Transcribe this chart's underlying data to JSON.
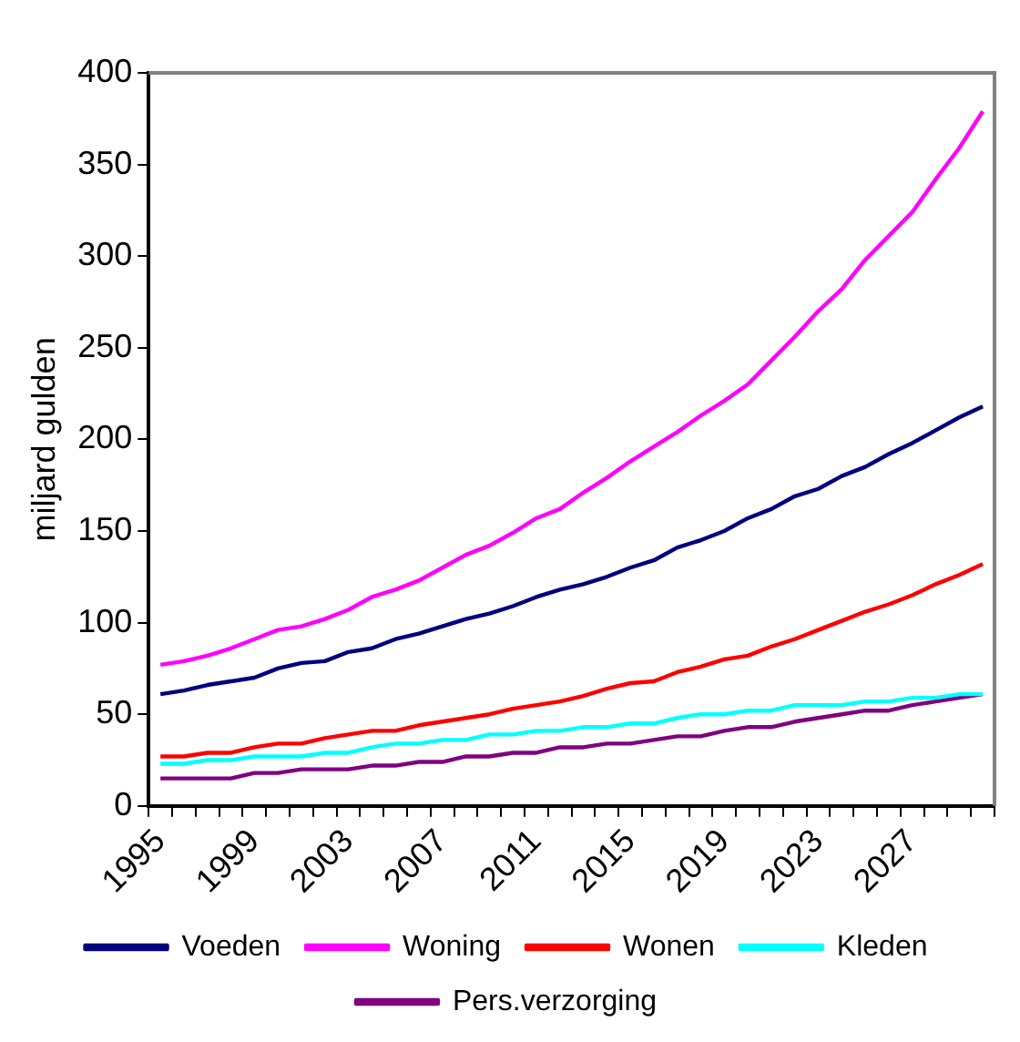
{
  "chart_data": {
    "type": "line",
    "ylabel": "miljard gulden",
    "categories": [
      "1995",
      null,
      null,
      null,
      "1999",
      null,
      null,
      null,
      "2003",
      null,
      null,
      null,
      "2007",
      null,
      null,
      null,
      "2011",
      null,
      null,
      null,
      "2015",
      null,
      null,
      null,
      "2019",
      null,
      null,
      null,
      "2023",
      null,
      null,
      null,
      "2027",
      null,
      null,
      null
    ],
    "series": [
      {
        "name": "Voeden",
        "color": "#000080",
        "values": [
          61,
          63,
          66,
          68,
          70,
          75,
          78,
          79,
          84,
          86,
          91,
          94,
          98,
          102,
          105,
          109,
          114,
          118,
          121,
          125,
          130,
          134,
          141,
          145,
          150,
          157,
          162,
          169,
          173,
          180,
          185,
          192,
          198,
          205,
          212,
          218
        ]
      },
      {
        "name": "Woning",
        "color": "#ff00ff",
        "values": [
          77,
          79,
          82,
          86,
          91,
          96,
          98,
          102,
          107,
          114,
          118,
          123,
          130,
          137,
          142,
          149,
          157,
          162,
          171,
          179,
          188,
          196,
          204,
          213,
          221,
          230,
          243,
          256,
          270,
          282,
          298,
          311,
          324,
          342,
          359,
          379
        ]
      },
      {
        "name": "Wonen",
        "color": "#ff0000",
        "values": [
          27,
          27,
          29,
          29,
          32,
          34,
          34,
          37,
          39,
          41,
          41,
          44,
          46,
          48,
          50,
          53,
          55,
          57,
          60,
          64,
          67,
          68,
          73,
          76,
          80,
          82,
          87,
          91,
          96,
          101,
          106,
          110,
          115,
          121,
          126,
          132
        ]
      },
      {
        "name": "Kleden",
        "color": "#00ffff",
        "values": [
          23,
          23,
          25,
          25,
          27,
          27,
          27,
          29,
          29,
          32,
          34,
          34,
          36,
          36,
          39,
          39,
          41,
          41,
          43,
          43,
          45,
          45,
          48,
          50,
          50,
          52,
          52,
          55,
          55,
          55,
          57,
          57,
          59,
          59,
          61,
          61
        ]
      },
      {
        "name": "Pers.verzorging",
        "color": "#800080",
        "values": [
          15,
          15,
          15,
          15,
          18,
          18,
          20,
          20,
          20,
          22,
          22,
          24,
          24,
          27,
          27,
          29,
          29,
          32,
          32,
          34,
          34,
          36,
          38,
          38,
          41,
          43,
          43,
          46,
          48,
          50,
          52,
          52,
          55,
          57,
          59,
          61
        ]
      }
    ],
    "ylim": [
      0,
      400
    ],
    "yticks": [
      0,
      50,
      100,
      150,
      200,
      250,
      300,
      350,
      400
    ],
    "grid": false,
    "legend": "bottom",
    "marker": "none",
    "line_style": "solid"
  }
}
